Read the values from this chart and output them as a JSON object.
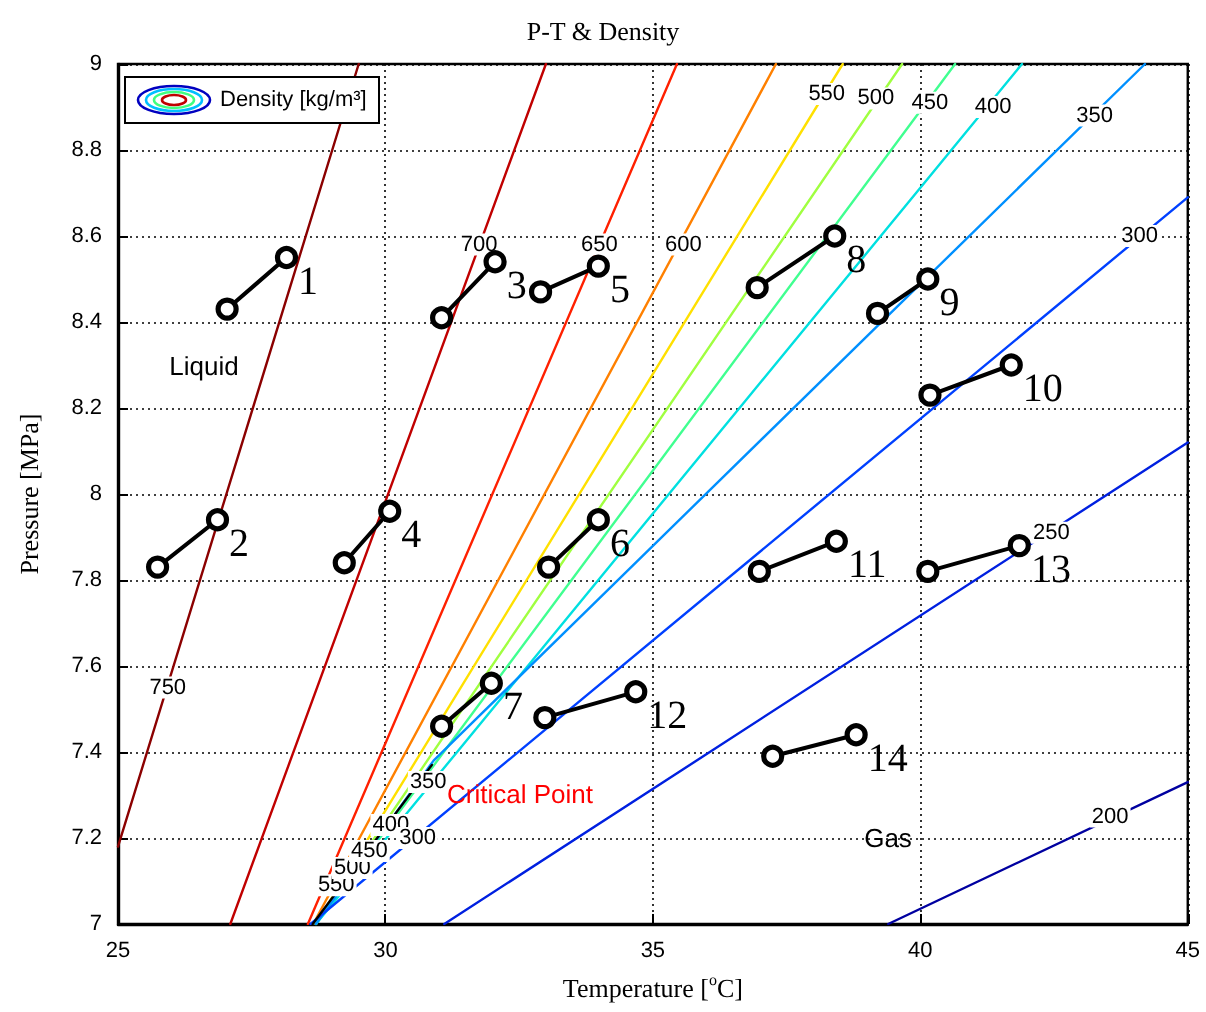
{
  "chart_data": {
    "type": "line",
    "title": "P-T & Density",
    "xlabel": "Temperature [$^{o}$C]",
    "ylabel": "Pressure [MPa]",
    "legend_title": "Density [kg/m³]",
    "grid": true,
    "xlim": [
      25,
      45
    ],
    "xticks": [
      25,
      30,
      35,
      40,
      45
    ],
    "ylim": [
      7,
      9
    ],
    "yticks": [
      7,
      7.2,
      7.4,
      7.6,
      7.8,
      8,
      8.2,
      8.4,
      8.6,
      8.8,
      9
    ],
    "series": [
      {
        "color": "#8b0000",
        "marker": "none",
        "x": [
          25,
          29.5
        ],
        "values": [
          7.18,
          9
        ]
      },
      {
        "color": "#c00000",
        "marker": "none",
        "x": [
          27.1,
          33
        ],
        "values": [
          7,
          9
        ]
      },
      {
        "color": "#ff2000",
        "marker": "none",
        "x": [
          28.55,
          35.45
        ],
        "values": [
          7,
          9
        ]
      },
      {
        "color": "#ff8000",
        "marker": "none",
        "x": [
          28.65,
          37.3
        ],
        "values": [
          7,
          9
        ]
      },
      {
        "color": "#ffe000",
        "marker": "none",
        "x": [
          28.7,
          38.55
        ],
        "values": [
          7,
          9
        ]
      },
      {
        "color": "#a0ff40",
        "marker": "none",
        "x": [
          28.7,
          39.66
        ],
        "values": [
          7,
          9
        ]
      },
      {
        "color": "#40ff90",
        "marker": "none",
        "x": [
          28.7,
          40.65
        ],
        "values": [
          7,
          9
        ]
      },
      {
        "color": "#00e0e0",
        "marker": "none",
        "x": [
          28.7,
          41.9
        ],
        "values": [
          7,
          9
        ]
      },
      {
        "color": "#0090ff",
        "marker": "none",
        "x": [
          28.7,
          30.9,
          44.2
        ],
        "values": [
          7,
          7.38,
          9
        ]
      },
      {
        "color": "#0040ff",
        "marker": "none",
        "x": [
          28.6,
          45
        ],
        "values": [
          7,
          8.69
        ]
      },
      {
        "color": "#0020e0",
        "marker": "none",
        "x": [
          31.1,
          45
        ],
        "values": [
          7,
          8.12
        ]
      },
      {
        "color": "#0000a0",
        "marker": "none",
        "x": [
          39.4,
          45
        ],
        "values": [
          7,
          7.33
        ]
      },
      {
        "color": "#000000",
        "marker": "none",
        "x": [
          28.64,
          30.87
        ],
        "values": [
          7,
          7.37
        ]
      },
      {
        "name": "1",
        "color": "#000000",
        "marker": "circle",
        "x": [
          27.04,
          28.15
        ],
        "values": [
          8.43,
          8.55
        ]
      },
      {
        "name": "2",
        "color": "#000000",
        "marker": "circle",
        "x": [
          25.74,
          26.86
        ],
        "values": [
          7.83,
          7.94
        ]
      },
      {
        "name": "3",
        "color": "#000000",
        "marker": "circle",
        "x": [
          31.05,
          32.05
        ],
        "values": [
          8.41,
          8.54
        ]
      },
      {
        "name": "4",
        "color": "#000000",
        "marker": "circle",
        "x": [
          29.23,
          30.08
        ],
        "values": [
          7.84,
          7.96
        ]
      },
      {
        "name": "5",
        "color": "#000000",
        "marker": "circle",
        "x": [
          32.9,
          33.98
        ],
        "values": [
          8.47,
          8.53
        ]
      },
      {
        "name": "6",
        "color": "#000000",
        "marker": "circle",
        "x": [
          33.05,
          33.98
        ],
        "values": [
          7.83,
          7.94
        ]
      },
      {
        "name": "7",
        "color": "#000000",
        "marker": "circle",
        "x": [
          31.05,
          31.98
        ],
        "values": [
          7.46,
          7.56
        ]
      },
      {
        "name": "8",
        "color": "#000000",
        "marker": "circle",
        "x": [
          36.95,
          38.4
        ],
        "values": [
          8.48,
          8.6
        ]
      },
      {
        "name": "9",
        "color": "#000000",
        "marker": "circle",
        "x": [
          39.2,
          40.14
        ],
        "values": [
          8.42,
          8.5
        ]
      },
      {
        "name": "10",
        "color": "#000000",
        "marker": "circle",
        "x": [
          40.18,
          41.7
        ],
        "values": [
          8.23,
          8.3
        ]
      },
      {
        "name": "11",
        "color": "#000000",
        "marker": "circle",
        "x": [
          36.99,
          38.43
        ],
        "values": [
          7.82,
          7.89
        ]
      },
      {
        "name": "12",
        "color": "#000000",
        "marker": "circle",
        "x": [
          32.98,
          34.68
        ],
        "values": [
          7.48,
          7.54
        ]
      },
      {
        "name": "13",
        "color": "#000000",
        "marker": "circle",
        "x": [
          40.14,
          41.85
        ],
        "values": [
          7.82,
          7.88
        ]
      },
      {
        "name": "14",
        "color": "#000000",
        "marker": "circle",
        "x": [
          37.24,
          38.8
        ],
        "values": [
          7.39,
          7.44
        ]
      }
    ],
    "annotations": [
      {
        "text": "750",
        "x": 25.93,
        "y": 7.55
      },
      {
        "text": "700",
        "x": 31.75,
        "y": 8.58
      },
      {
        "text": "650",
        "x": 34.0,
        "y": 8.58
      },
      {
        "text": "600",
        "x": 35.57,
        "y": 8.58
      },
      {
        "text": "550",
        "x": 38.25,
        "y": 8.93
      },
      {
        "text": "500",
        "x": 39.17,
        "y": 8.92
      },
      {
        "text": "450",
        "x": 40.18,
        "y": 8.91
      },
      {
        "text": "400",
        "x": 41.36,
        "y": 8.9
      },
      {
        "text": "350",
        "x": 43.26,
        "y": 8.88
      },
      {
        "text": "300",
        "x": 44.1,
        "y": 8.6
      },
      {
        "text": "250",
        "x": 42.45,
        "y": 7.91
      },
      {
        "text": "200",
        "x": 43.55,
        "y": 7.25
      },
      {
        "text": "550",
        "x": 29.08,
        "y": 7.09
      },
      {
        "text": "500",
        "x": 29.38,
        "y": 7.13
      },
      {
        "text": "450",
        "x": 29.7,
        "y": 7.17
      },
      {
        "text": "400",
        "x": 30.1,
        "y": 7.23
      },
      {
        "text": "350",
        "x": 30.8,
        "y": 7.33
      },
      {
        "text": "300",
        "x": 30.6,
        "y": 7.2
      },
      "Liquid",
      "Gas",
      "Critical Point"
    ]
  }
}
